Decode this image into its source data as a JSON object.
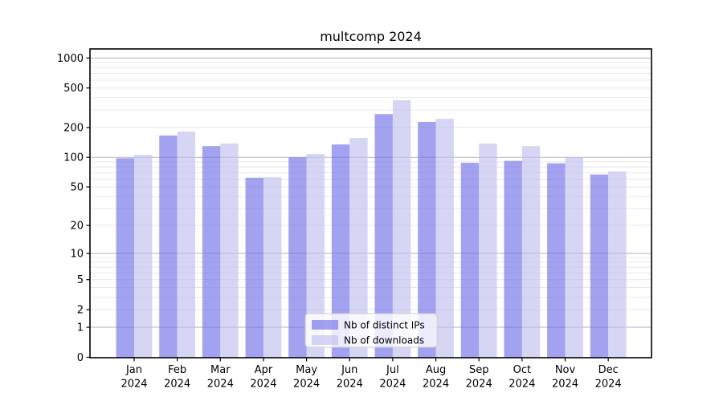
{
  "chart_data": {
    "type": "bar",
    "title": "multcomp 2024",
    "categories": [
      "Jan 2024",
      "Feb 2024",
      "Mar 2024",
      "Apr 2024",
      "May 2024",
      "Jun 2024",
      "Jul 2024",
      "Aug 2024",
      "Sep 2024",
      "Oct 2024",
      "Nov 2024",
      "Dec 2024"
    ],
    "series": [
      {
        "name": "Nb of distinct IPs",
        "color": "rgba(112,112,232,0.65)",
        "values": [
          98,
          166,
          130,
          62,
          100,
          135,
          273,
          228,
          88,
          92,
          87,
          67
        ]
      },
      {
        "name": "Nb of downloads",
        "color": "rgba(192,192,238,0.65)",
        "values": [
          106,
          182,
          138,
          63,
          108,
          157,
          377,
          245,
          138,
          130,
          100,
          72
        ]
      }
    ],
    "xlabel": "",
    "ylabel": "",
    "yscale": "log1p",
    "ylim": [
      0,
      1233
    ],
    "y_ticks": [
      1000,
      500,
      200,
      100,
      50,
      20,
      10,
      5,
      2,
      1,
      0
    ],
    "major_gridline_values": [
      1,
      10,
      100,
      1000
    ],
    "grid": true,
    "legend_position": "lower-center",
    "colors": {
      "axis": "#000000",
      "major_grid": "#b3b3b3",
      "minor_grid": "#e8e8e8",
      "legend_border": "#cccccc",
      "legend_bg": "rgba(255,255,255,0.8)",
      "text": "#000000"
    }
  }
}
